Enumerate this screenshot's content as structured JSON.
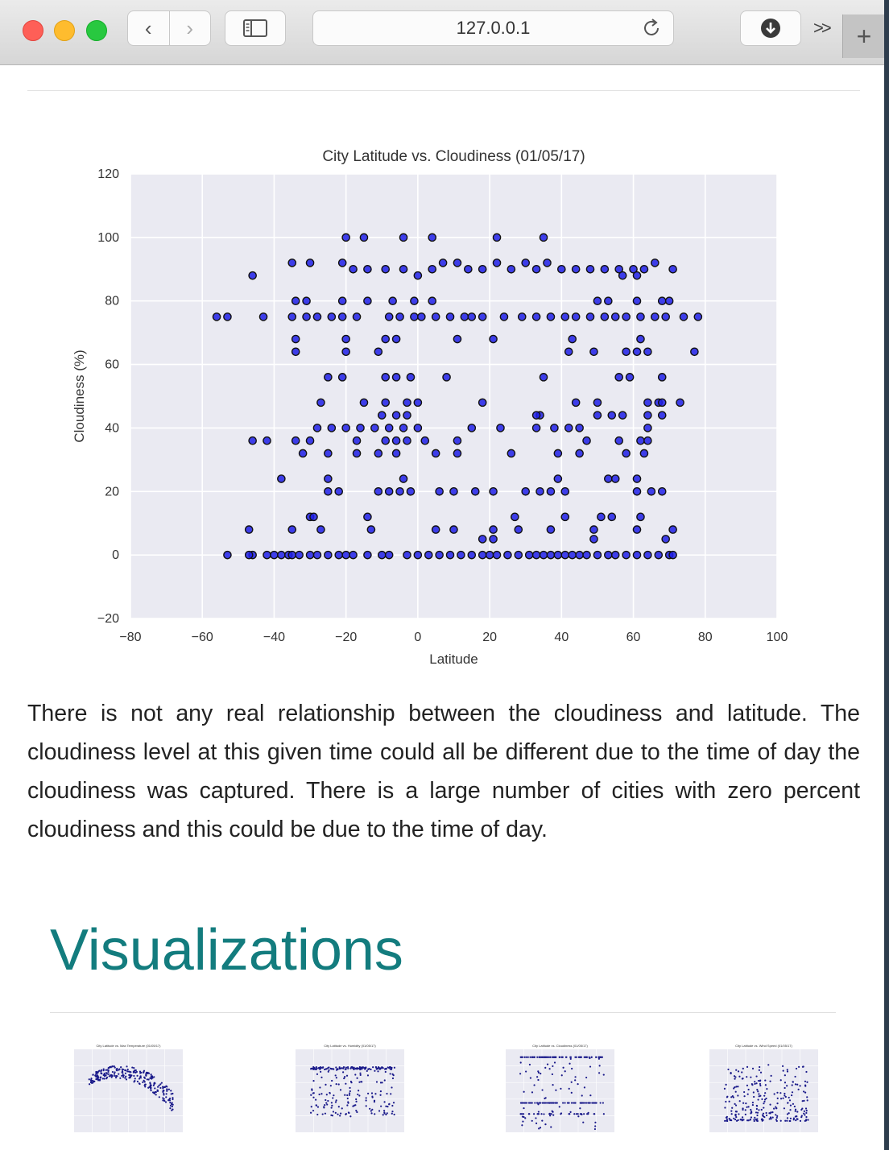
{
  "browser": {
    "url": "127.0.0.1",
    "back_glyph": "‹",
    "forward_glyph": "›",
    "more_glyph": ">>",
    "newtab_glyph": "+"
  },
  "chart_data": {
    "type": "scatter",
    "title": "City Latitude vs. Cloudiness (01/05/17)",
    "xlabel": "Latitude",
    "ylabel": "Cloudiness (%)",
    "xlim": [
      -80,
      100
    ],
    "ylim": [
      -20,
      120
    ],
    "x_ticks": [
      "−80",
      "−60",
      "−40",
      "−20",
      "0",
      "20",
      "40",
      "60",
      "80",
      "100"
    ],
    "y_ticks": [
      "−20",
      "0",
      "20",
      "40",
      "60",
      "80",
      "100",
      "120"
    ],
    "grid": true,
    "point_color": "#1f1fe8",
    "points": [
      [
        -53,
        0
      ],
      [
        -46,
        0
      ],
      [
        -47,
        0
      ],
      [
        -42,
        0
      ],
      [
        -40,
        0
      ],
      [
        -38,
        0
      ],
      [
        -36,
        0
      ],
      [
        -35,
        0
      ],
      [
        -33,
        0
      ],
      [
        -30,
        0
      ],
      [
        -28,
        0
      ],
      [
        -25,
        0
      ],
      [
        -22,
        0
      ],
      [
        -20,
        0
      ],
      [
        -18,
        0
      ],
      [
        -14,
        0
      ],
      [
        -10,
        0
      ],
      [
        -8,
        0
      ],
      [
        -3,
        0
      ],
      [
        0,
        0
      ],
      [
        3,
        0
      ],
      [
        6,
        0
      ],
      [
        9,
        0
      ],
      [
        12,
        0
      ],
      [
        15,
        0
      ],
      [
        18,
        0
      ],
      [
        20,
        0
      ],
      [
        22,
        0
      ],
      [
        25,
        0
      ],
      [
        28,
        0
      ],
      [
        31,
        0
      ],
      [
        33,
        0
      ],
      [
        35,
        0
      ],
      [
        37,
        0
      ],
      [
        39,
        0
      ],
      [
        41,
        0
      ],
      [
        43,
        0
      ],
      [
        45,
        0
      ],
      [
        47,
        0
      ],
      [
        50,
        0
      ],
      [
        53,
        0
      ],
      [
        55,
        0
      ],
      [
        58,
        0
      ],
      [
        61,
        0
      ],
      [
        64,
        0
      ],
      [
        67,
        0
      ],
      [
        70,
        0
      ],
      [
        71,
        0
      ],
      [
        -47,
        8
      ],
      [
        -35,
        8
      ],
      [
        -27,
        8
      ],
      [
        -13,
        8
      ],
      [
        5,
        8
      ],
      [
        10,
        8
      ],
      [
        21,
        8
      ],
      [
        28,
        8
      ],
      [
        37,
        8
      ],
      [
        49,
        8
      ],
      [
        61,
        8
      ],
      [
        71,
        8
      ],
      [
        -14,
        12
      ],
      [
        -30,
        12
      ],
      [
        -29,
        12
      ],
      [
        27,
        12
      ],
      [
        41,
        12
      ],
      [
        51,
        12
      ],
      [
        54,
        12
      ],
      [
        62,
        12
      ],
      [
        18,
        5
      ],
      [
        21,
        5
      ],
      [
        49,
        5
      ],
      [
        69,
        5
      ],
      [
        -38,
        24
      ],
      [
        -25,
        24
      ],
      [
        -4,
        24
      ],
      [
        39,
        24
      ],
      [
        53,
        24
      ],
      [
        55,
        24
      ],
      [
        61,
        24
      ],
      [
        -25,
        20
      ],
      [
        -22,
        20
      ],
      [
        -11,
        20
      ],
      [
        -8,
        20
      ],
      [
        -5,
        20
      ],
      [
        -2,
        20
      ],
      [
        6,
        20
      ],
      [
        10,
        20
      ],
      [
        16,
        20
      ],
      [
        21,
        20
      ],
      [
        30,
        20
      ],
      [
        34,
        20
      ],
      [
        37,
        20
      ],
      [
        41,
        20
      ],
      [
        61,
        20
      ],
      [
        65,
        20
      ],
      [
        68,
        20
      ],
      [
        -46,
        36
      ],
      [
        -42,
        36
      ],
      [
        -34,
        36
      ],
      [
        -30,
        36
      ],
      [
        -17,
        36
      ],
      [
        -9,
        36
      ],
      [
        -6,
        36
      ],
      [
        -3,
        36
      ],
      [
        2,
        36
      ],
      [
        -32,
        32
      ],
      [
        -25,
        32
      ],
      [
        -17,
        32
      ],
      [
        -11,
        32
      ],
      [
        -6,
        32
      ],
      [
        5,
        32
      ],
      [
        11,
        32
      ],
      [
        26,
        32
      ],
      [
        39,
        32
      ],
      [
        45,
        32
      ],
      [
        58,
        32
      ],
      [
        63,
        32
      ],
      [
        -28,
        40
      ],
      [
        -24,
        40
      ],
      [
        -20,
        40
      ],
      [
        -16,
        40
      ],
      [
        -12,
        40
      ],
      [
        -8,
        40
      ],
      [
        -4,
        40
      ],
      [
        0,
        40
      ],
      [
        15,
        40
      ],
      [
        23,
        40
      ],
      [
        33,
        40
      ],
      [
        38,
        40
      ],
      [
        42,
        40
      ],
      [
        45,
        40
      ],
      [
        64,
        40
      ],
      [
        -10,
        44
      ],
      [
        -3,
        44
      ],
      [
        -6,
        44
      ],
      [
        34,
        44
      ],
      [
        50,
        44
      ],
      [
        54,
        44
      ],
      [
        57,
        44
      ],
      [
        64,
        44
      ],
      [
        68,
        44
      ],
      [
        -27,
        48
      ],
      [
        -15,
        48
      ],
      [
        -9,
        48
      ],
      [
        -3,
        48
      ],
      [
        0,
        48
      ],
      [
        18,
        48
      ],
      [
        44,
        48
      ],
      [
        50,
        48
      ],
      [
        64,
        48
      ],
      [
        67,
        48
      ],
      [
        68,
        48
      ],
      [
        73,
        48
      ],
      [
        47,
        36
      ],
      [
        56,
        36
      ],
      [
        62,
        36
      ],
      [
        64,
        36
      ],
      [
        33,
        44
      ],
      [
        11,
        36
      ],
      [
        -25,
        56
      ],
      [
        -21,
        56
      ],
      [
        -9,
        56
      ],
      [
        -6,
        56
      ],
      [
        -2,
        56
      ],
      [
        8,
        56
      ],
      [
        35,
        56
      ],
      [
        56,
        56
      ],
      [
        59,
        56
      ],
      [
        68,
        56
      ],
      [
        -34,
        64
      ],
      [
        -20,
        64
      ],
      [
        -11,
        64
      ],
      [
        42,
        64
      ],
      [
        49,
        64
      ],
      [
        58,
        64
      ],
      [
        61,
        64
      ],
      [
        64,
        64
      ],
      [
        77,
        64
      ],
      [
        -34,
        68
      ],
      [
        -20,
        68
      ],
      [
        -9,
        68
      ],
      [
        -6,
        68
      ],
      [
        11,
        68
      ],
      [
        21,
        68
      ],
      [
        43,
        68
      ],
      [
        62,
        68
      ],
      [
        -56,
        75
      ],
      [
        -53,
        75
      ],
      [
        -43,
        75
      ],
      [
        -35,
        75
      ],
      [
        -31,
        75
      ],
      [
        -28,
        75
      ],
      [
        -24,
        75
      ],
      [
        -21,
        75
      ],
      [
        -17,
        75
      ],
      [
        -8,
        75
      ],
      [
        -5,
        75
      ],
      [
        -1,
        75
      ],
      [
        1,
        75
      ],
      [
        5,
        75
      ],
      [
        9,
        75
      ],
      [
        13,
        75
      ],
      [
        15,
        75
      ],
      [
        18,
        75
      ],
      [
        24,
        75
      ],
      [
        29,
        75
      ],
      [
        33,
        75
      ],
      [
        37,
        75
      ],
      [
        41,
        75
      ],
      [
        44,
        75
      ],
      [
        48,
        75
      ],
      [
        52,
        75
      ],
      [
        55,
        75
      ],
      [
        58,
        75
      ],
      [
        62,
        75
      ],
      [
        66,
        75
      ],
      [
        69,
        75
      ],
      [
        74,
        75
      ],
      [
        78,
        75
      ],
      [
        -34,
        80
      ],
      [
        -31,
        80
      ],
      [
        -21,
        80
      ],
      [
        -14,
        80
      ],
      [
        -7,
        80
      ],
      [
        -1,
        80
      ],
      [
        4,
        80
      ],
      [
        50,
        80
      ],
      [
        53,
        80
      ],
      [
        61,
        80
      ],
      [
        68,
        80
      ],
      [
        70,
        80
      ],
      [
        -46,
        88
      ],
      [
        -35,
        92
      ],
      [
        -30,
        92
      ],
      [
        -21,
        92
      ],
      [
        -18,
        90
      ],
      [
        -14,
        90
      ],
      [
        -9,
        90
      ],
      [
        -4,
        90
      ],
      [
        0,
        88
      ],
      [
        4,
        90
      ],
      [
        7,
        92
      ],
      [
        11,
        92
      ],
      [
        14,
        90
      ],
      [
        18,
        90
      ],
      [
        22,
        92
      ],
      [
        26,
        90
      ],
      [
        30,
        92
      ],
      [
        33,
        90
      ],
      [
        36,
        92
      ],
      [
        40,
        90
      ],
      [
        44,
        90
      ],
      [
        48,
        90
      ],
      [
        52,
        90
      ],
      [
        56,
        90
      ],
      [
        60,
        90
      ],
      [
        63,
        90
      ],
      [
        66,
        92
      ],
      [
        71,
        90
      ],
      [
        57,
        88
      ],
      [
        61,
        88
      ],
      [
        -20,
        100
      ],
      [
        -15,
        100
      ],
      [
        -4,
        100
      ],
      [
        4,
        100
      ],
      [
        22,
        100
      ],
      [
        35,
        100
      ]
    ]
  },
  "paragraph": "There is not any real relationship between the cloudiness and latitude. The cloudiness level at this given time could all be different due to the time of day the cloudiness was captured. There is a large number of cities with zero percent cloudiness and this could be due to the time of day.",
  "section_heading": "Visualizations",
  "thumbnails": [
    {
      "title": "City Latitude vs. Max Temperature (01/05/17)",
      "kind": "temperature"
    },
    {
      "title": "City Latitude vs. Humidity (01/05/17)",
      "kind": "humidity"
    },
    {
      "title": "City Latitude vs. Cloudiness (01/05/17)",
      "kind": "cloudiness"
    },
    {
      "title": "City Latitude vs. Wind Speed (01/05/17)",
      "kind": "wind"
    }
  ]
}
